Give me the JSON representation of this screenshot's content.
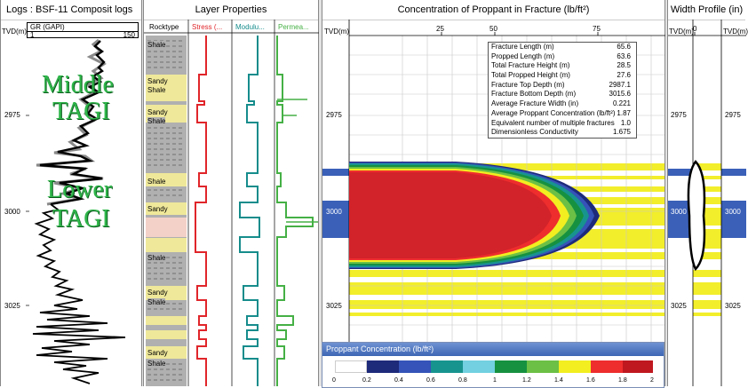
{
  "logs_panel": {
    "title": "Logs : BSF-11 Composit logs",
    "track_header": "GR (GAPI)",
    "scale_min": "1",
    "scale_max": "150",
    "tvd_label": "TVD(m)",
    "depth_labels": [
      "2975",
      "3000",
      "3025"
    ],
    "zone_middle": [
      "Middle",
      "TAGI"
    ],
    "zone_lower": [
      "Lower",
      "TAGI"
    ]
  },
  "layer_panel": {
    "title": "Layer Properties",
    "col_rocktype": "Rocktype",
    "col_stress": "Stress (...",
    "col_modulus": "Modulu...",
    "col_permeability": "Permea...",
    "rock_labels": [
      "Shale",
      "Sandy",
      "Shale",
      "Sandy",
      "Shale",
      "Shale",
      "Sandy",
      "Shale",
      "Sandy",
      "Shale",
      "Sandy",
      "Shale"
    ]
  },
  "concentration_panel": {
    "title": "Concentration of Proppant in Fracture (lb/ft²)",
    "tvd_label": "TVD(m)",
    "x_ticks": [
      "25",
      "50",
      "75"
    ],
    "depth_labels": [
      "2975",
      "3000",
      "3025"
    ]
  },
  "fracture_summary": [
    {
      "label": "Fracture Length (m)",
      "value": "65.6"
    },
    {
      "label": "Propped Length (m)",
      "value": "63.6"
    },
    {
      "label": "Total Fracture Height (m)",
      "value": "28.5"
    },
    {
      "label": "Total Propped Height (m)",
      "value": "27.6"
    },
    {
      "label": "Fracture Top Depth (m)",
      "value": "2987.1"
    },
    {
      "label": "Fracture Bottom Depth (m)",
      "value": "3015.6"
    },
    {
      "label": "Average Fracture Width (in)",
      "value": "0.221"
    },
    {
      "label": "Average Proppant Concentration (lb/ft²)",
      "value": "1.87"
    },
    {
      "label": "Equivalent number of multiple fractures",
      "value": "1.0"
    },
    {
      "label": "Dimensionless Conductivity",
      "value": "1.675"
    }
  ],
  "legend": {
    "title": "Proppant Concentration (lb/ft²)",
    "ticks": [
      "0",
      "0.2",
      "0.4",
      "0.6",
      "0.8",
      "1",
      "1.2",
      "1.4",
      "1.6",
      "1.8",
      "2"
    ],
    "colors": [
      "#ffffff",
      "#1e2a7a",
      "#3553b8",
      "#18948f",
      "#72d0e0",
      "#169140",
      "#6cc045",
      "#f2ee20",
      "#ee2d2d",
      "#c0181f"
    ]
  },
  "width_panel": {
    "title": "Width Profile (in)",
    "tvd_label": "TVD(m)",
    "x_tick": "0",
    "depth_labels": [
      "2975",
      "3000",
      "3025"
    ]
  }
}
